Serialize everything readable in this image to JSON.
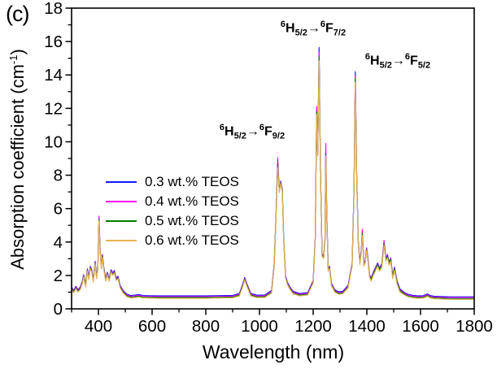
{
  "panel_label": "(c)",
  "axes": {
    "x": {
      "label": "Wavelength (nm)",
      "min": 300,
      "max": 1800,
      "major_ticks": [
        400,
        600,
        800,
        1000,
        1200,
        1400,
        1600,
        1800
      ],
      "minor_step": 100
    },
    "y": {
      "label_prefix": "Absorption coefficient (cm",
      "label_sup": "-1",
      "label_suffix": ")",
      "min": 0,
      "max": 18,
      "major_ticks": [
        0,
        2,
        4,
        6,
        8,
        10,
        12,
        14,
        16,
        18
      ],
      "minor_step": 1
    }
  },
  "legend": {
    "items": [
      {
        "label": "0.3 wt.% TEOS",
        "color": "#1515ff"
      },
      {
        "label": "0.4 wt.% TEOS",
        "color": "#ff00ff"
      },
      {
        "label": "0.5 wt.% TEOS",
        "color": "#008000"
      },
      {
        "label": "0.6 wt.% TEOS",
        "color": "#e7b251"
      }
    ]
  },
  "annotations": [
    {
      "id": "f92",
      "sup_from": "6",
      "term_from": "H",
      "sub_from": "5/2",
      "arrow": "→",
      "sup_to": "6",
      "term_to": "F",
      "sub_to": "9/2"
    },
    {
      "id": "f72",
      "sup_from": "6",
      "term_from": "H",
      "sub_from": "5/2",
      "arrow": "→",
      "sup_to": "6",
      "term_to": "F",
      "sub_to": "7/2"
    },
    {
      "id": "f52",
      "sup_from": "6",
      "term_from": "H",
      "sub_from": "5/2",
      "arrow": "→",
      "sup_to": "6",
      "term_to": "F",
      "sub_to": "5/2"
    }
  ],
  "chart_data": {
    "type": "line",
    "title": "",
    "xlabel": "Wavelength (nm)",
    "ylabel": "Absorption coefficient (cm⁻¹)",
    "xlim": [
      300,
      1800
    ],
    "ylim": [
      0,
      18
    ],
    "grid": false,
    "legend_position": "inside-center-left",
    "x": [
      300,
      308,
      316,
      324,
      332,
      340,
      345,
      352,
      359,
      364,
      370,
      375,
      381,
      388,
      393,
      398,
      402,
      406,
      411,
      415,
      420,
      427,
      433,
      440,
      447,
      453,
      459,
      466,
      473,
      481,
      492,
      505,
      520,
      540,
      550,
      565,
      590,
      630,
      700,
      800,
      900,
      925,
      938,
      945,
      953,
      968,
      990,
      1020,
      1045,
      1055,
      1061,
      1068,
      1074,
      1079,
      1085,
      1090,
      1097,
      1104,
      1112,
      1125,
      1150,
      1180,
      1200,
      1208,
      1213,
      1217,
      1222,
      1227,
      1233,
      1239,
      1244,
      1247,
      1251,
      1256,
      1261,
      1268,
      1280,
      1295,
      1310,
      1330,
      1345,
      1352,
      1357,
      1362,
      1368,
      1374,
      1379,
      1383,
      1389,
      1394,
      1399,
      1404,
      1410,
      1416,
      1425,
      1433,
      1440,
      1447,
      1456,
      1464,
      1471,
      1477,
      1483,
      1489,
      1496,
      1503,
      1512,
      1523,
      1538,
      1552,
      1572,
      1590,
      1610,
      1626,
      1636,
      1650,
      1675,
      1710,
      1760,
      1800
    ],
    "series": [
      {
        "name": "0.3 wt.% TEOS",
        "color": "#1515ff",
        "values": [
          1.3,
          1.1,
          1.35,
          1.15,
          1.3,
          1.65,
          2.05,
          1.45,
          2.4,
          1.9,
          2.55,
          2.35,
          1.75,
          2.85,
          1.95,
          2.55,
          5.45,
          3.7,
          2.55,
          3.25,
          2.5,
          1.8,
          2.2,
          1.8,
          2.35,
          2.15,
          2.3,
          1.85,
          1.95,
          1.4,
          1.1,
          0.88,
          0.8,
          0.83,
          0.86,
          0.8,
          0.79,
          0.78,
          0.78,
          0.78,
          0.81,
          0.92,
          1.5,
          1.88,
          1.5,
          0.92,
          0.82,
          0.83,
          1.1,
          2.7,
          5.3,
          8.75,
          7.1,
          7.65,
          7.15,
          4.3,
          2.0,
          1.6,
          1.35,
          1.05,
          0.92,
          0.98,
          1.7,
          4.3,
          11.95,
          9.3,
          15.65,
          8.6,
          3.3,
          3.15,
          4.1,
          9.4,
          5.6,
          2.4,
          2.55,
          1.55,
          1.15,
          1.02,
          1.05,
          1.4,
          2.7,
          7.1,
          14.2,
          8.1,
          4.1,
          2.8,
          3.5,
          4.6,
          2.7,
          2.9,
          3.65,
          3.05,
          2.05,
          1.85,
          2.25,
          2.5,
          2.75,
          2.45,
          2.7,
          4.0,
          3.05,
          3.25,
          2.8,
          3.05,
          2.0,
          2.5,
          1.7,
          1.2,
          1.0,
          0.88,
          0.81,
          0.78,
          0.79,
          0.9,
          0.8,
          0.76,
          0.74,
          0.72,
          0.72,
          0.72
        ]
      },
      {
        "name": "0.4 wt.% TEOS",
        "color": "#ff00ff",
        "values": [
          1.25,
          1.05,
          1.3,
          1.1,
          1.25,
          1.6,
          2.0,
          1.4,
          2.35,
          1.85,
          2.5,
          2.3,
          1.7,
          2.8,
          1.9,
          2.5,
          5.55,
          3.65,
          2.5,
          3.2,
          2.45,
          1.75,
          2.15,
          1.75,
          2.3,
          2.1,
          2.25,
          1.8,
          1.9,
          1.35,
          1.05,
          0.83,
          0.75,
          0.78,
          0.81,
          0.75,
          0.74,
          0.73,
          0.73,
          0.73,
          0.76,
          0.87,
          1.45,
          1.83,
          1.45,
          0.87,
          0.77,
          0.78,
          1.05,
          2.65,
          5.25,
          9.05,
          7.05,
          7.6,
          7.1,
          4.25,
          1.95,
          1.55,
          1.3,
          1.0,
          0.87,
          0.93,
          1.65,
          4.25,
          12.1,
          9.25,
          15.35,
          8.55,
          3.25,
          3.1,
          4.05,
          9.9,
          5.55,
          2.35,
          2.5,
          1.5,
          1.1,
          0.97,
          1.0,
          1.35,
          2.65,
          7.05,
          13.95,
          8.05,
          4.05,
          2.75,
          3.45,
          4.75,
          2.65,
          2.85,
          3.6,
          3.0,
          2.0,
          1.8,
          2.2,
          2.45,
          2.7,
          2.4,
          2.65,
          4.1,
          3.0,
          3.2,
          2.75,
          3.0,
          1.95,
          2.45,
          1.65,
          1.15,
          0.95,
          0.83,
          0.76,
          0.73,
          0.74,
          0.85,
          0.75,
          0.71,
          0.69,
          0.67,
          0.67,
          0.67
        ]
      },
      {
        "name": "0.5 wt.% TEOS",
        "color": "#008000",
        "values": [
          1.2,
          1.0,
          1.25,
          1.05,
          1.2,
          1.55,
          1.95,
          1.35,
          2.3,
          1.8,
          2.45,
          2.25,
          1.65,
          2.75,
          1.85,
          2.45,
          5.35,
          3.6,
          2.45,
          3.15,
          2.4,
          1.7,
          2.1,
          1.7,
          2.25,
          2.05,
          2.2,
          1.75,
          1.85,
          1.3,
          1.0,
          0.78,
          0.7,
          0.73,
          0.76,
          0.7,
          0.69,
          0.68,
          0.68,
          0.68,
          0.71,
          0.82,
          1.4,
          1.78,
          1.4,
          0.82,
          0.72,
          0.73,
          1.0,
          2.6,
          5.2,
          8.7,
          7.0,
          7.55,
          7.05,
          4.2,
          1.9,
          1.5,
          1.25,
          0.95,
          0.82,
          0.88,
          1.6,
          4.2,
          11.8,
          9.2,
          15.1,
          8.5,
          3.2,
          3.05,
          4.0,
          9.3,
          5.5,
          2.3,
          2.45,
          1.45,
          1.05,
          0.92,
          0.95,
          1.3,
          2.6,
          7.0,
          13.8,
          8.0,
          4.0,
          2.7,
          3.4,
          4.5,
          2.6,
          2.8,
          3.55,
          2.95,
          1.95,
          1.75,
          2.15,
          2.4,
          2.65,
          2.35,
          2.6,
          3.9,
          2.95,
          3.15,
          2.7,
          2.95,
          1.9,
          2.4,
          1.6,
          1.1,
          0.9,
          0.78,
          0.71,
          0.68,
          0.69,
          0.8,
          0.7,
          0.66,
          0.64,
          0.62,
          0.62,
          0.62
        ]
      },
      {
        "name": "0.6 wt.% TEOS",
        "color": "#e7b251",
        "values": [
          1.15,
          0.95,
          1.2,
          1.0,
          1.15,
          1.5,
          1.9,
          1.3,
          2.25,
          1.75,
          2.4,
          2.2,
          1.6,
          2.7,
          1.8,
          2.4,
          5.25,
          3.55,
          2.4,
          3.1,
          2.35,
          1.65,
          2.05,
          1.65,
          2.2,
          2.0,
          2.15,
          1.7,
          1.8,
          1.25,
          0.95,
          0.73,
          0.65,
          0.68,
          0.71,
          0.65,
          0.64,
          0.63,
          0.63,
          0.63,
          0.66,
          0.77,
          1.35,
          1.73,
          1.35,
          0.77,
          0.67,
          0.68,
          0.95,
          2.55,
          5.15,
          8.45,
          6.95,
          7.5,
          7.0,
          4.15,
          1.85,
          1.45,
          1.2,
          0.9,
          0.77,
          0.83,
          1.55,
          4.15,
          11.65,
          9.15,
          14.85,
          8.45,
          3.15,
          3.0,
          3.95,
          9.15,
          5.45,
          2.25,
          2.4,
          1.4,
          1.0,
          0.87,
          0.9,
          1.25,
          2.55,
          6.95,
          13.55,
          7.95,
          3.95,
          2.65,
          3.35,
          4.4,
          2.55,
          2.75,
          3.5,
          2.9,
          1.9,
          1.65,
          2.05,
          2.3,
          2.55,
          2.25,
          2.5,
          3.8,
          2.85,
          3.05,
          2.6,
          2.85,
          1.8,
          2.3,
          1.5,
          1.0,
          0.85,
          0.73,
          0.66,
          0.63,
          0.64,
          0.75,
          0.65,
          0.61,
          0.59,
          0.57,
          0.57,
          0.57
        ]
      }
    ]
  }
}
